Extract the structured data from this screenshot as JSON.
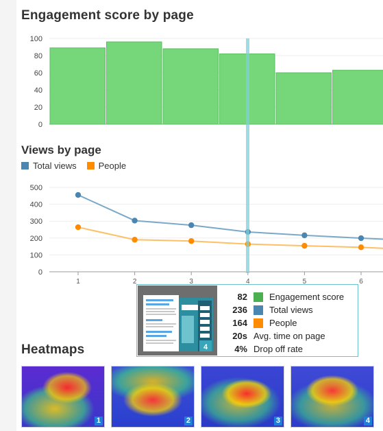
{
  "engagement": {
    "title": "Engagement score by page"
  },
  "views": {
    "title": "Views by page",
    "legend": [
      {
        "label": "Total views",
        "color": "#4a86b0"
      },
      {
        "label": "People",
        "color": "#ff8c00"
      }
    ]
  },
  "chart_data": [
    {
      "type": "bar",
      "title": "Engagement score by page",
      "categories": [
        "1",
        "2",
        "3",
        "4",
        "5",
        "6"
      ],
      "values": [
        89,
        96,
        88,
        82,
        60,
        63
      ],
      "ylim": [
        0,
        100
      ],
      "yticks": [
        "0",
        "20",
        "40",
        "60",
        "80",
        "100"
      ],
      "color": "#75d67a"
    },
    {
      "type": "line",
      "title": "Views by page",
      "x": [
        "1",
        "2",
        "3",
        "4",
        "5",
        "6"
      ],
      "ylim": [
        0,
        500
      ],
      "yticks": [
        "0",
        "100",
        "200",
        "300",
        "400",
        "500"
      ],
      "series": [
        {
          "name": "Total views",
          "values": [
            455,
            303,
            276,
            236,
            216,
            199
          ],
          "color": "#7aa9c8",
          "marker": "#4a86b0"
        },
        {
          "name": "People",
          "values": [
            264,
            190,
            182,
            164,
            154,
            145
          ],
          "color": "#ffbf66",
          "marker": "#ff8c00"
        }
      ]
    }
  ],
  "tooltip": {
    "page": "4",
    "rows": [
      {
        "value": "82",
        "label": "Engagement score",
        "color": "#4caf50"
      },
      {
        "value": "236",
        "label": "Total views",
        "color": "#4a86b0"
      },
      {
        "value": "164",
        "label": "People",
        "color": "#ff8c00"
      },
      {
        "value": "20s",
        "label": "Avg. time on page",
        "color": ""
      },
      {
        "value": "4%",
        "label": "Drop off rate",
        "color": ""
      }
    ]
  },
  "heatmaps": {
    "title": "Heatmaps",
    "items": [
      {
        "number": "1"
      },
      {
        "number": "2"
      },
      {
        "number": "3"
      },
      {
        "number": "4"
      }
    ]
  }
}
